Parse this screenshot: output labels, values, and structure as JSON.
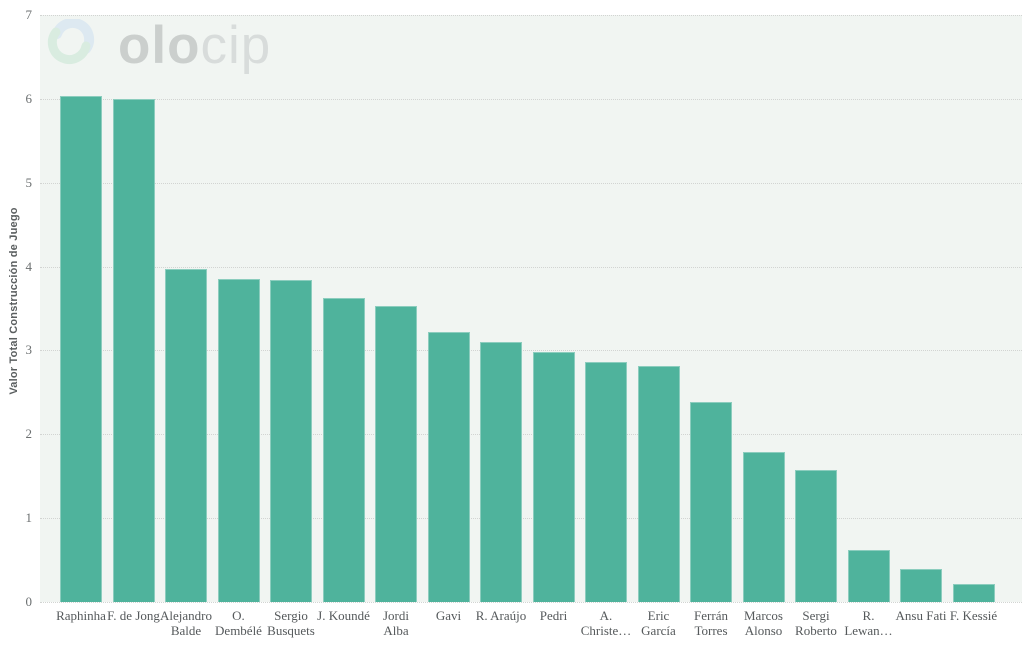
{
  "logo": {
    "text_bold": "olo",
    "text_light": "cip"
  },
  "chart_data": {
    "type": "bar",
    "title": "",
    "xlabel": "",
    "ylabel": "Valor Total Construcción de Juego",
    "ylim": [
      0,
      7
    ],
    "yticks": [
      0,
      1,
      2,
      3,
      4,
      5,
      6,
      7
    ],
    "grid": "horizontal dotted",
    "legend": "none",
    "categories": [
      "Raphinha",
      "F. de Jong",
      "Alejandro\nBalde",
      "O.\nDembélé",
      "Sergio\nBusquets",
      "J. Koundé",
      "Jordi\nAlba",
      "Gavi",
      "R. Araújo",
      "Pedri",
      "A.\nChriste…",
      "Eric\nGarcía",
      "Ferrán\nTorres",
      "Marcos\nAlonso",
      "Sergi\nRoberto",
      "R.\nLewan…",
      "Ansu Fati",
      "F. Kessié"
    ],
    "values": [
      6.03,
      6.0,
      3.97,
      3.85,
      3.84,
      3.63,
      3.53,
      3.22,
      3.1,
      2.98,
      2.86,
      2.82,
      2.39,
      1.79,
      1.58,
      0.62,
      0.39,
      0.22
    ],
    "colors": {
      "bar": "#4fb39c",
      "plot_background": "#f1f5f2",
      "gridline": "#d2d4d2",
      "tick_label": "#6b6f70",
      "axis_title": "#5a5e5f",
      "category_label": "#55595b",
      "logo_bold": "#c7cbca",
      "logo_light": "#d6dad9",
      "logo_icon_blue": "#dbe8f1",
      "logo_icon_green": "#d7ecdf"
    }
  }
}
